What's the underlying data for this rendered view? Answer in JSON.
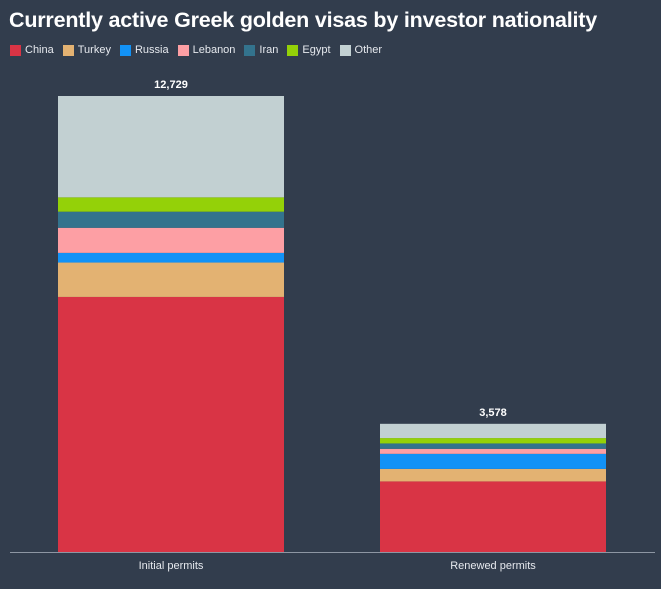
{
  "chart_data": {
    "type": "bar",
    "stacked": true,
    "title": "Currently active Greek golden visas by investor nationality",
    "categories": [
      "Initial permits",
      "Renewed permits"
    ],
    "totals": [
      "12,729",
      "3,578"
    ],
    "total_values": [
      12729,
      3578
    ],
    "series": [
      {
        "name": "China",
        "color": "#d93445",
        "values": [
          7120,
          1970
        ]
      },
      {
        "name": "Turkey",
        "color": "#e3b272",
        "values": [
          960,
          350
        ]
      },
      {
        "name": "Russia",
        "color": "#1292f6",
        "values": [
          270,
          420
        ]
      },
      {
        "name": "Lebanon",
        "color": "#fd9fa4",
        "values": [
          700,
          140
        ]
      },
      {
        "name": "Iran",
        "color": "#33738d",
        "values": [
          450,
          150
        ]
      },
      {
        "name": "Egypt",
        "color": "#94d108",
        "values": [
          400,
          150
        ]
      },
      {
        "name": "Other",
        "color": "#c2d0d2",
        "values": [
          2829,
          398
        ]
      }
    ],
    "ylim": [
      0,
      12729
    ],
    "grid": false,
    "legend": "top-left",
    "axis_color": "#8d96a3"
  }
}
